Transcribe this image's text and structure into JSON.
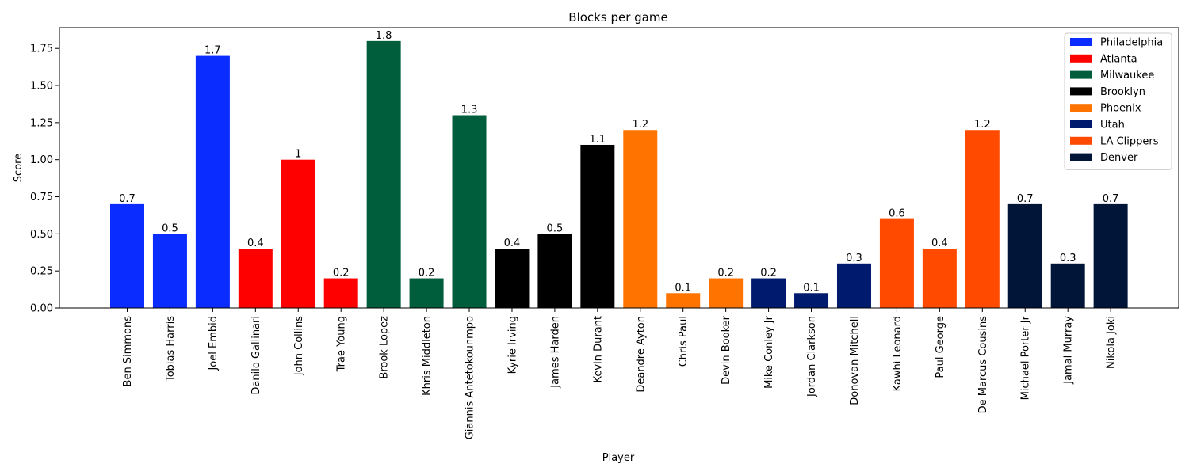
{
  "chart_data": {
    "type": "bar",
    "title": "Blocks per game",
    "xlabel": "Player",
    "ylabel": "Score",
    "ylim": [
      0,
      1.89
    ],
    "yticks": [
      0.0,
      0.25,
      0.5,
      0.75,
      1.0,
      1.25,
      1.5,
      1.75
    ],
    "ytick_labels": [
      "0.00",
      "0.25",
      "0.50",
      "0.75",
      "1.00",
      "1.25",
      "1.50",
      "1.75"
    ],
    "grid": false,
    "legend_position": "top-right",
    "teams": [
      {
        "name": "Philadelphia",
        "color": "#0a2cff"
      },
      {
        "name": "Atlanta",
        "color": "#ff0000"
      },
      {
        "name": "Milwaukee",
        "color": "#005e3c"
      },
      {
        "name": "Brooklyn",
        "color": "#000000"
      },
      {
        "name": "Phoenix",
        "color": "#ff7300"
      },
      {
        "name": "Utah",
        "color": "#001a6e"
      },
      {
        "name": "LA Clippers",
        "color": "#ff4a00"
      },
      {
        "name": "Denver",
        "color": "#011538"
      }
    ],
    "categories": [
      "Ben Simmons",
      "Tobias Harris",
      "Joel Embid",
      "Danilo Gallinari",
      "John Collins",
      "Trae Young",
      "Brook Lopez",
      "Khris Middleton",
      "Giannis Antetokounmpo",
      "Kyrie Irving",
      "James Harden",
      "Kevin Durant",
      "Deandre Ayton",
      "Chris Paul",
      "Devin Booker",
      "Mike Conley Jr",
      "Jordan Clarkson",
      "Donovan Mitchell",
      "Kawhi Leonard",
      "Paul George",
      "De Marcus Cousins",
      "Michael Porter Jr",
      "Jamal Murray",
      "Nikola Joki"
    ],
    "values": [
      0.7,
      0.5,
      1.7,
      0.4,
      1,
      0.2,
      1.8,
      0.2,
      1.3,
      0.4,
      0.5,
      1.1,
      1.2,
      0.1,
      0.2,
      0.2,
      0.1,
      0.3,
      0.6,
      0.4,
      1.2,
      0.7,
      0.3,
      0.7
    ],
    "value_labels": [
      "0.7",
      "0.5",
      "1.7",
      "0.4",
      "1",
      "0.2",
      "1.8",
      "0.2",
      "1.3",
      "0.4",
      "0.5",
      "1.1",
      "1.2",
      "0.1",
      "0.2",
      "0.2",
      "0.1",
      "0.3",
      "0.6",
      "0.4",
      "1.2",
      "0.7",
      "0.3",
      "0.7"
    ],
    "team_index": [
      0,
      0,
      0,
      1,
      1,
      1,
      2,
      2,
      2,
      3,
      3,
      3,
      4,
      4,
      4,
      5,
      5,
      5,
      6,
      6,
      6,
      7,
      7,
      7
    ]
  }
}
